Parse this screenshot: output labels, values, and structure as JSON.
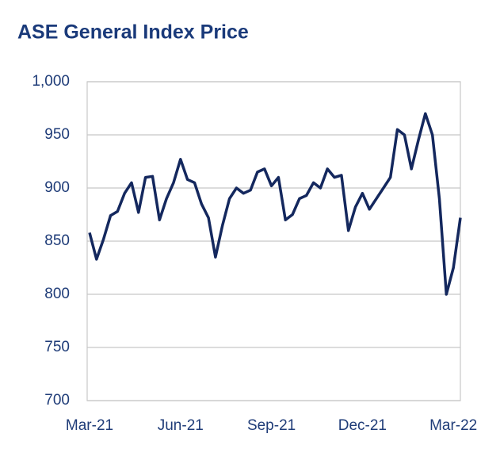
{
  "chart_data": {
    "type": "line",
    "title": "ASE General Index Price",
    "categories": [
      "Mar-21",
      null,
      null,
      null,
      null,
      null,
      null,
      null,
      null,
      null,
      null,
      null,
      null,
      "Jun-21",
      null,
      null,
      null,
      null,
      null,
      null,
      null,
      null,
      null,
      null,
      null,
      null,
      "Sep-21",
      null,
      null,
      null,
      null,
      null,
      null,
      null,
      null,
      null,
      null,
      null,
      null,
      "Dec-21",
      null,
      null,
      null,
      null,
      null,
      null,
      null,
      null,
      null,
      null,
      null,
      null,
      "Mar-22",
      null
    ],
    "series": [
      {
        "name": "ASE General Index",
        "color": "#14285e",
        "values": [
          858,
          833,
          852,
          874,
          878,
          895,
          905,
          877,
          910,
          911,
          870,
          890,
          905,
          927,
          908,
          905,
          885,
          872,
          835,
          865,
          890,
          900,
          895,
          898,
          915,
          918,
          902,
          910,
          870,
          875,
          890,
          893,
          905,
          900,
          918,
          910,
          912,
          860,
          882,
          895,
          880,
          890,
          900,
          910,
          955,
          950,
          918,
          945,
          970,
          950,
          890,
          800,
          825,
          872
        ]
      }
    ],
    "ylim": [
      700,
      1000
    ],
    "yticks": [
      700,
      750,
      800,
      850,
      900,
      950,
      {
        "value": 1000,
        "label": "1,000"
      }
    ],
    "grid": true
  }
}
